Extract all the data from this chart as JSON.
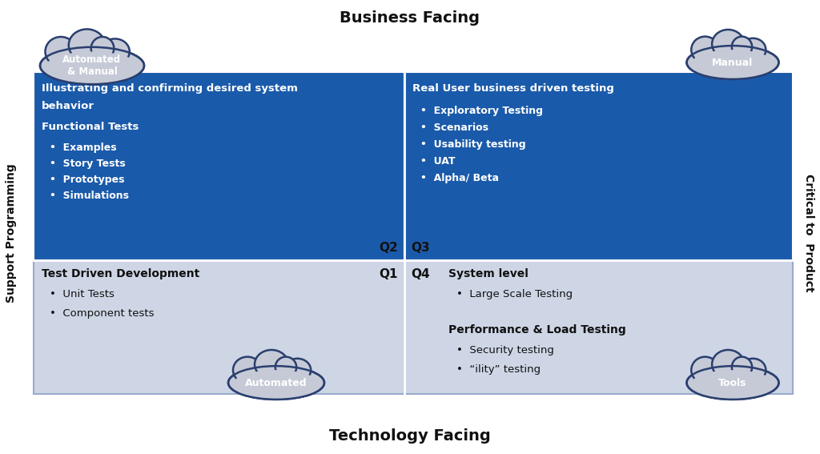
{
  "title_top": "Business Facing",
  "title_bottom": "Technology Facing",
  "title_left": "Support Programming",
  "title_right": "Critical to  Product",
  "bg_color": "#ffffff",
  "dark_blue": "#1a5aaa",
  "light_blue": "#ced6e6",
  "cloud_fill": "#c5cad6",
  "cloud_stroke": "#2a3f6f",
  "quadrants": {
    "Q2": {
      "title_line1": "Illustrating and confirming desired system",
      "title_line2": "behavior",
      "subtitle": "Functional Tests",
      "bullets": [
        "Examples",
        "Story Tests",
        "Prototypes",
        "Simulations"
      ],
      "label": "Q2"
    },
    "Q3": {
      "title_line1": "Real User business driven testing",
      "bullets": [
        "Exploratory Testing",
        "Scenarios",
        "Usability testing",
        "UAT",
        "Alpha/ Beta"
      ],
      "label": "Q3"
    },
    "Q1": {
      "title": "Test Driven Development",
      "bullets": [
        "Unit Tests",
        "Component tests"
      ],
      "label": "Q1"
    },
    "Q4": {
      "title1": "System level",
      "bullets1": [
        "Large Scale Testing"
      ],
      "title2": "Performance & Load Testing",
      "bullets2": [
        "Security testing",
        "“ility” testing"
      ],
      "label": "Q4"
    }
  }
}
